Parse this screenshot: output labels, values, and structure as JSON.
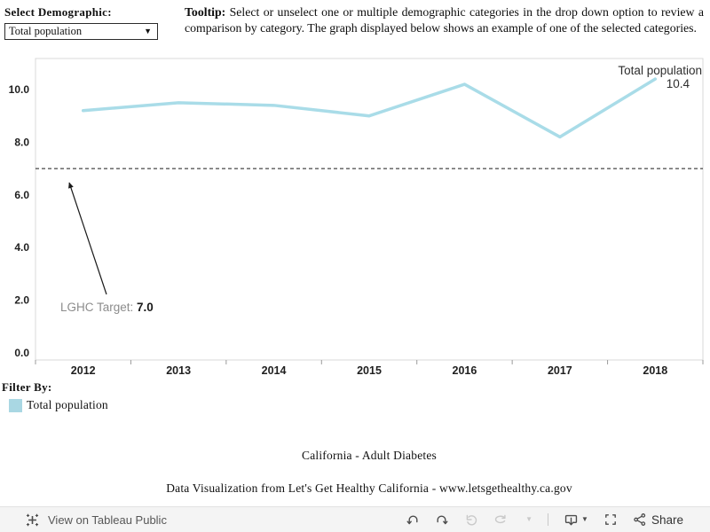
{
  "header": {
    "select_label": "Select Demographic:",
    "dropdown_value": "Total population",
    "tooltip_bold": "Tooltip:",
    "tooltip_text": " Select or unselect one or multiple demographic categories in the drop down option to review a comparison by category. The graph displayed below shows an example of one of the selected categories."
  },
  "chart_data": {
    "type": "line",
    "title": "",
    "xlabel": "",
    "ylabel": "",
    "grid": false,
    "legend_position": "none",
    "categories": [
      "2012",
      "2013",
      "2014",
      "2015",
      "2016",
      "2017",
      "2018"
    ],
    "series": [
      {
        "name": "Total population",
        "values": [
          9.2,
          9.5,
          9.4,
          9.0,
          10.2,
          8.2,
          10.4
        ],
        "color": "#a9dce8"
      }
    ],
    "end_label": {
      "name": "Total population",
      "value": "10.4"
    },
    "reference_line": {
      "value": 7.0,
      "label_prefix": "LGHC Target: ",
      "label_value": "7.0"
    },
    "y_ticks": [
      "0.0",
      "2.0",
      "4.0",
      "6.0",
      "8.0",
      "10.0"
    ],
    "ylim": [
      0,
      11.2
    ]
  },
  "filter": {
    "label": "Filter By:",
    "legend_item": "Total population",
    "swatch_style": "background-color:#a9d7e3"
  },
  "caption": {
    "line1": "California - Adult Diabetes",
    "line2": "Data Visualization from Let's Get Healthy California - www.letsgethealthy.ca.gov"
  },
  "toolbar": {
    "view_label": "View on Tableau Public",
    "share_label": "Share"
  },
  "colors": {
    "line": "#a9dce8",
    "axis_text": "#1f1f1f",
    "target_text_gray": "#8c8c8c",
    "plot_border": "#d8d8d8"
  }
}
